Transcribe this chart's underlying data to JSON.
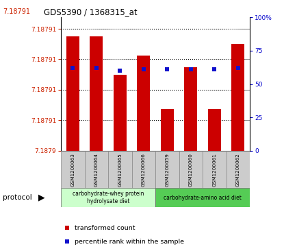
{
  "title": "GDS5390 / 1368315_at",
  "samples": [
    "GSM1200063",
    "GSM1200064",
    "GSM1200065",
    "GSM1200066",
    "GSM1200059",
    "GSM1200060",
    "GSM1200061",
    "GSM1200062"
  ],
  "bar_tops": [
    7.18791,
    7.18791,
    7.1879,
    7.187905,
    7.187891,
    7.187902,
    7.187891,
    7.187908
  ],
  "bar_bottom": 7.18788,
  "percentile_ranks": [
    62,
    62,
    60,
    61,
    61,
    61,
    61,
    62
  ],
  "ymin": 7.18788,
  "ymax": 7.187915,
  "ytick_vals": [
    7.18788,
    7.187888,
    7.187896,
    7.187904,
    7.187912
  ],
  "ytick_labels": [
    "7.1879",
    "7.18791",
    "7.18791",
    "7.18791",
    "7.18791"
  ],
  "bar_color": "#cc0000",
  "dot_color": "#1111cc",
  "group1_label": "carbohydrate-whey protein\nhydrolysate diet",
  "group2_label": "carbohydrate-amino acid diet",
  "group1_color": "#ccffcc",
  "group2_color": "#55cc55",
  "left_axis_color": "#cc2200",
  "right_axis_color": "#0000cc",
  "legend_red": "transformed count",
  "legend_blue": "percentile rank within the sample"
}
